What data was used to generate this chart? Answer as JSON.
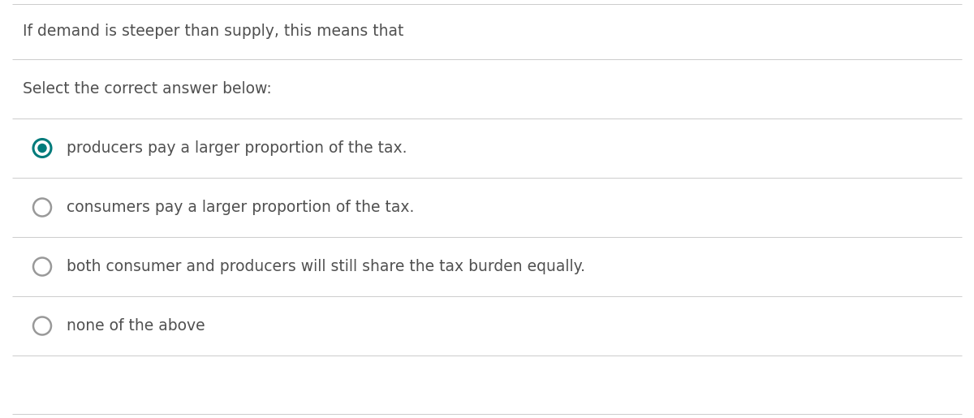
{
  "question": "If demand is steeper than supply, this means that",
  "instruction": "Select the correct answer below:",
  "options": [
    "producers pay a larger proportion of the tax.",
    "consumers pay a larger proportion of the tax.",
    "both consumer and producers will still share the tax burden equally.",
    "none of the above"
  ],
  "selected_index": 0,
  "bg_color": "#ffffff",
  "text_color": "#505050",
  "border_color": "#cccccc",
  "selected_circle_fill": "#007b7b",
  "selected_circle_ring": "#007b7b",
  "unselected_circle_fill": "#ffffff",
  "unselected_circle_ring": "#999999",
  "font_size": 13.5
}
